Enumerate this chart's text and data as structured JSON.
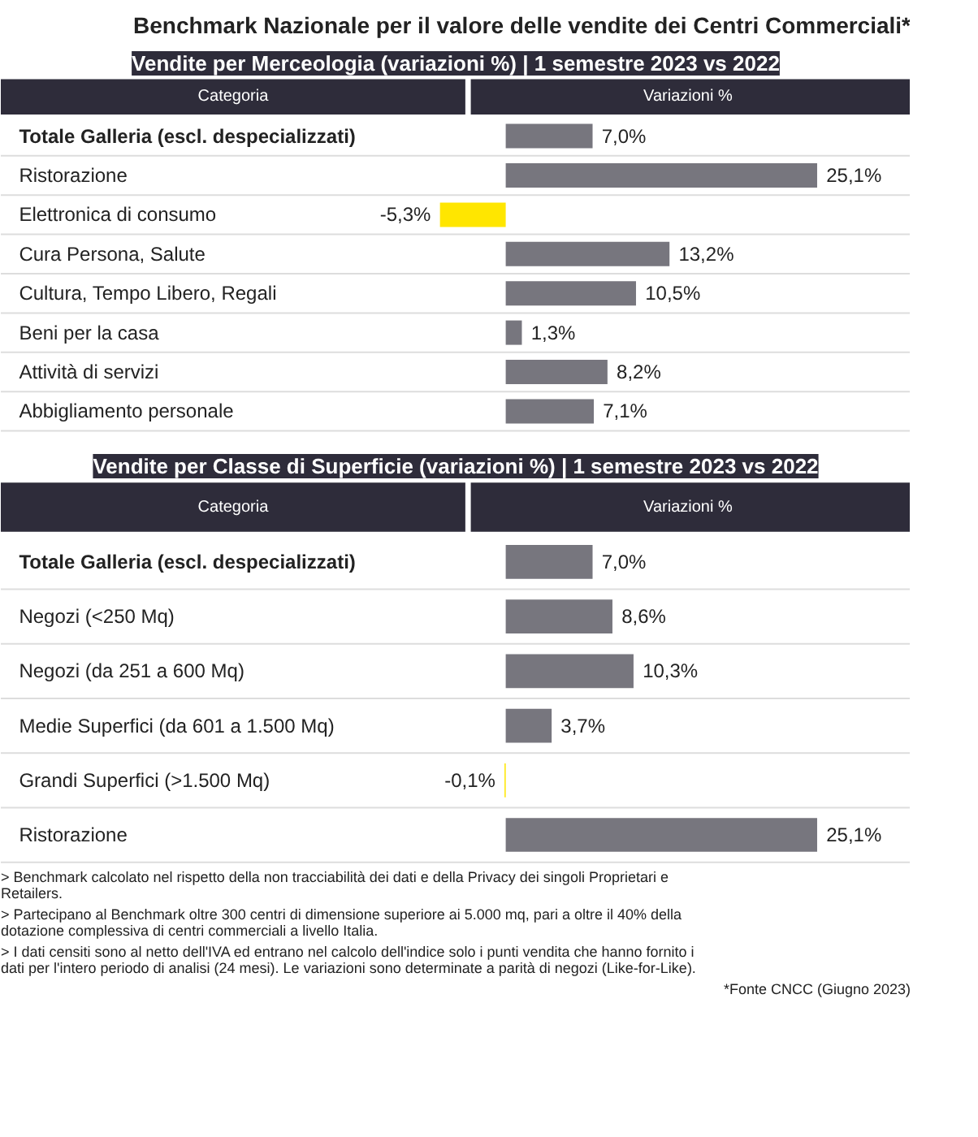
{
  "chart_data": [
    {
      "type": "bar",
      "orientation": "horizontal",
      "title": "Benchmark Nazionale per il valore delle vendite dei Centri Commerciali*",
      "subtitle": "Vendite per Merceologia (variazioni %) | 1 semestre 2023 vs 2022",
      "ylabel": "Categoria",
      "xlabel": "Variazioni %",
      "categories": [
        "Totale Galleria (escl. despecializzati)",
        "Ristorazione",
        "Elettronica di consumo",
        "Cura Persona, Salute",
        "Cultura, Tempo Libero, Regali",
        "Beni per la casa",
        "Attività di servizi",
        "Abbigliamento personale"
      ],
      "values": [
        7.0,
        25.1,
        -5.3,
        13.2,
        10.5,
        1.3,
        8.2,
        7.1
      ],
      "colors": [
        "#77767e",
        "#77767e",
        "#ffe600",
        "#77767e",
        "#77767e",
        "#77767e",
        "#77767e",
        "#77767e"
      ],
      "value_labels": [
        "7,0%",
        "25,1%",
        "-5,3%",
        "13,2%",
        "10,5%",
        "1,3%",
        "8,2%",
        "7,1%"
      ]
    },
    {
      "type": "bar",
      "orientation": "horizontal",
      "subtitle": "Vendite per Classe di Superficie (variazioni %) | 1 semestre 2023 vs 2022",
      "ylabel": "Categoria",
      "xlabel": "Variazioni %",
      "categories": [
        "Totale Galleria (escl. despecializzati)",
        "Negozi (<250 Mq)",
        "Negozi (da 251 a 600 Mq)",
        "Medie Superfici (da 601 a 1.500 Mq)",
        "Grandi Superfici (>1.500 Mq)",
        "Ristorazione"
      ],
      "values": [
        7.0,
        8.6,
        10.3,
        3.7,
        -0.1,
        25.1
      ],
      "colors": [
        "#77767e",
        "#77767e",
        "#77767e",
        "#77767e",
        "#ffe600",
        "#77767e"
      ],
      "value_labels": [
        "7,0%",
        "8,6%",
        "10,3%",
        "3,7%",
        "-0,1%",
        "25,1%"
      ],
      "annotations": [
        "> Benchmark calcolato nel rispetto della non tracciabilità dei dati e della Privacy dei singoli Proprietari e Retailers.",
        "> Partecipano al Benchmark oltre 300 centri di dimensione superiore ai 5.000 mq, pari a oltre il 40% della dotazione complessiva di centri commerciali a livello Italia.",
        "> I dati censiti sono al netto dell'IVA ed entrano nel calcolo dell'indice solo i punti vendita che hanno fornito i dati per l'intero periodo di analisi (24 mesi). Le variazioni sono determinate a parità di negozi (Like-for-Like).",
        "*Fonte CNCC (Giugno 2023)"
      ]
    }
  ]
}
